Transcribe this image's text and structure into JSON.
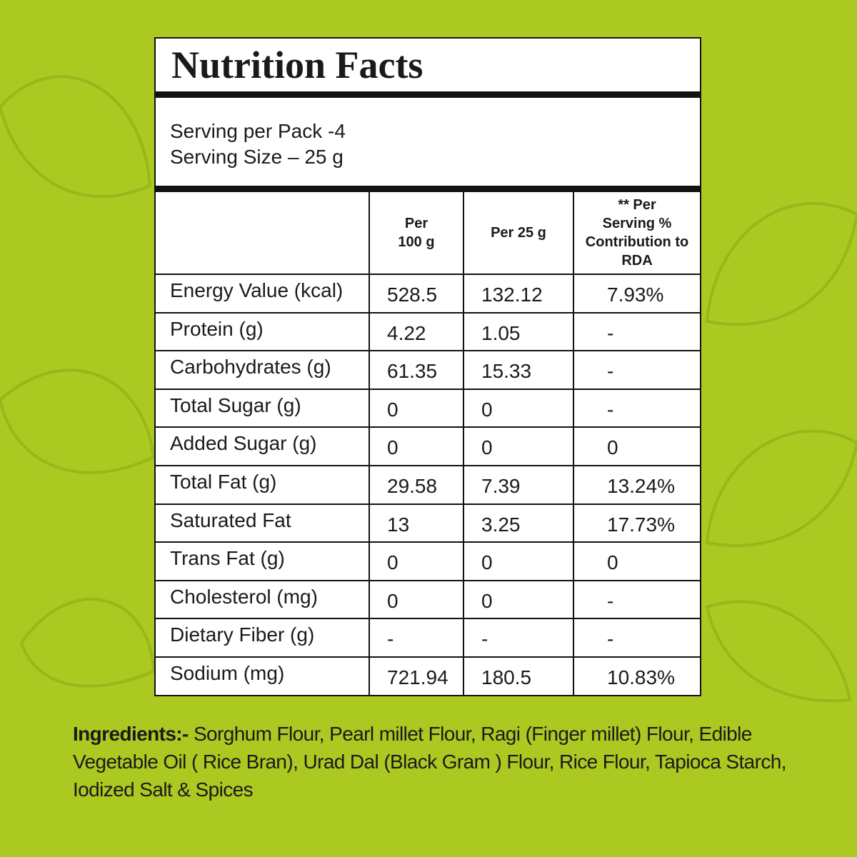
{
  "title": "Nutrition Facts",
  "serving": [
    "Serving per Pack -4",
    "Serving Size – 25 g"
  ],
  "table": {
    "header": [
      [],
      [
        "Per",
        "100 g"
      ],
      [
        "Per 25 g"
      ],
      [
        "** Per",
        "Serving %",
        "Contribution to",
        "RDA"
      ]
    ],
    "rows": [
      [
        "Energy Value (kcal)",
        "528.5",
        "132.12",
        "7.93%"
      ],
      [
        "Protein (g)",
        "4.22",
        "1.05",
        "-"
      ],
      [
        "Carbohydrates (g)",
        "61.35",
        "15.33",
        "-"
      ],
      [
        "Total Sugar (g)",
        "0",
        "0",
        "-"
      ],
      [
        "Added Sugar (g)",
        "0",
        "0",
        "0"
      ],
      [
        "Total Fat (g)",
        "29.58",
        "7.39",
        "13.24%"
      ],
      [
        "Saturated Fat",
        "13",
        "3.25",
        "17.73%"
      ],
      [
        "Trans Fat (g)",
        "0",
        "0",
        "0"
      ],
      [
        "Cholesterol (mg)",
        "0",
        "0",
        "-"
      ],
      [
        "Dietary Fiber (g)",
        "-",
        "-",
        "-"
      ],
      [
        "Sodium (mg)",
        "721.94",
        "180.5",
        "10.83%"
      ]
    ]
  },
  "ingredients": {
    "label": "Ingredients:-",
    "text": " Sorghum Flour, Pearl millet Flour, Ragi (Finger millet) Flour, Edible Vegetable Oil ( Rice Bran), Urad Dal (Black Gram ) Flour, Rice Flour, Tapioca Starch, Iodized Salt & Spices"
  }
}
